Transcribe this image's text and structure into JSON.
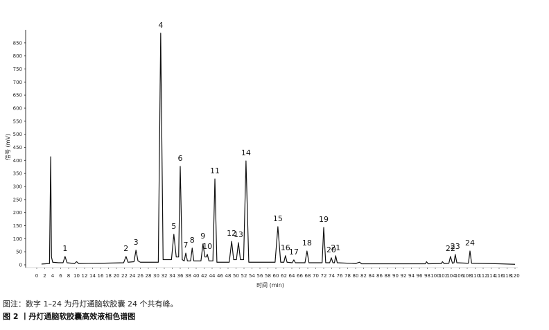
{
  "chart_data": {
    "type": "line",
    "x_label": "时间 (min)",
    "y_label": "信号 (mV)",
    "xlim": [
      0,
      120
    ],
    "ylim": [
      0,
      900
    ],
    "xticks": [
      0,
      2,
      4,
      6,
      8,
      10,
      12,
      14,
      16,
      18,
      20,
      22,
      24,
      26,
      28,
      30,
      32,
      34,
      36,
      38,
      40,
      42,
      44,
      46,
      48,
      50,
      52,
      54,
      56,
      58,
      60,
      62,
      64,
      66,
      68,
      70,
      72,
      74,
      76,
      78,
      80,
      82,
      84,
      86,
      88,
      90,
      92,
      94,
      96,
      98,
      100,
      102,
      104,
      106,
      108,
      110,
      112,
      114,
      116,
      118,
      120
    ],
    "yticks": [
      0,
      50,
      100,
      150,
      200,
      250,
      300,
      350,
      400,
      450,
      500,
      550,
      600,
      650,
      700,
      750,
      800,
      850
    ],
    "x": [
      1.2,
      3.2,
      3.5,
      3.7,
      4.0,
      5.5,
      6.6,
      7.1,
      7.6,
      9.5,
      10,
      10.5,
      16,
      21.8,
      22.4,
      22.9,
      24.4,
      24.9,
      25.4,
      26,
      30.5,
      31.1,
      31.7,
      33.8,
      34.4,
      35,
      35.6,
      36.0,
      36.5,
      37.0,
      37.4,
      37.8,
      38.6,
      39.0,
      39.4,
      41.2,
      41.7,
      42.2,
      42.5,
      42.8,
      43.2,
      44.2,
      44.7,
      45.2,
      48.3,
      48.9,
      49.4,
      50.1,
      50.6,
      51.1,
      51.9,
      52.5,
      53.2,
      59.8,
      60.5,
      61.2,
      62.0,
      62.4,
      62.8,
      64.1,
      64.5,
      64.9,
      67.3,
      67.8,
      68.3,
      71.6,
      72.0,
      72.5,
      73.5,
      73.9,
      74.3,
      74.7,
      75.0,
      75.4,
      80,
      81,
      81.5,
      97.5,
      97.8,
      98.2,
      101.5,
      101.8,
      102.2,
      103.4,
      103.8,
      104.3,
      104.7,
      105.0,
      105.4,
      108.3,
      108.7,
      109.1,
      110,
      116,
      120
    ],
    "series": [
      {
        "color": "#111111",
        "values": [
          3,
          5,
          414,
          30,
          10,
          8,
          8,
          32,
          8,
          5,
          12,
          5,
          6,
          8,
          32,
          10,
          12,
          56,
          15,
          10,
          10,
          887,
          20,
          20,
          117,
          30,
          30,
          377,
          20,
          15,
          45,
          15,
          15,
          64,
          15,
          15,
          80,
          30,
          30,
          40,
          15,
          15,
          329,
          10,
          10,
          90,
          20,
          20,
          85,
          20,
          20,
          398,
          10,
          10,
          146,
          10,
          10,
          35,
          10,
          8,
          19,
          8,
          8,
          53,
          8,
          8,
          143,
          8,
          8,
          27,
          8,
          8,
          35,
          8,
          5,
          10,
          4,
          4,
          12,
          4,
          5,
          12,
          5,
          6,
          32,
          6,
          8,
          40,
          8,
          6,
          53,
          6,
          6,
          4,
          2
        ]
      }
    ],
    "peaks": [
      {
        "label": "1",
        "x": 7.1,
        "y": 32
      },
      {
        "label": "2",
        "x": 22.4,
        "y": 32
      },
      {
        "label": "3",
        "x": 24.9,
        "y": 56
      },
      {
        "label": "4",
        "x": 31.1,
        "y": 887
      },
      {
        "label": "5",
        "x": 34.4,
        "y": 117
      },
      {
        "label": "6",
        "x": 36.0,
        "y": 377
      },
      {
        "label": "7",
        "x": 37.4,
        "y": 45
      },
      {
        "label": "8",
        "x": 39.0,
        "y": 64
      },
      {
        "label": "9",
        "x": 41.7,
        "y": 80
      },
      {
        "label": "10",
        "x": 42.8,
        "y": 40
      },
      {
        "label": "11",
        "x": 44.7,
        "y": 329
      },
      {
        "label": "12",
        "x": 48.9,
        "y": 90
      },
      {
        "label": "13",
        "x": 50.6,
        "y": 85
      },
      {
        "label": "14",
        "x": 52.5,
        "y": 398
      },
      {
        "label": "15",
        "x": 60.5,
        "y": 146
      },
      {
        "label": "16",
        "x": 62.4,
        "y": 35
      },
      {
        "label": "17",
        "x": 64.5,
        "y": 19
      },
      {
        "label": "18",
        "x": 67.8,
        "y": 53
      },
      {
        "label": "19",
        "x": 72.0,
        "y": 143
      },
      {
        "label": "20",
        "x": 73.9,
        "y": 27
      },
      {
        "label": "21",
        "x": 75.0,
        "y": 35
      },
      {
        "label": "22",
        "x": 103.8,
        "y": 32
      },
      {
        "label": "23",
        "x": 105.0,
        "y": 40
      },
      {
        "label": "24",
        "x": 108.7,
        "y": 53
      }
    ]
  },
  "caption": {
    "note": "图注：数字 1–24 为丹灯通脑软胶囊 24 个共有峰。",
    "title": "图 2 丨丹灯通脑软胶囊高效液相色谱图"
  }
}
